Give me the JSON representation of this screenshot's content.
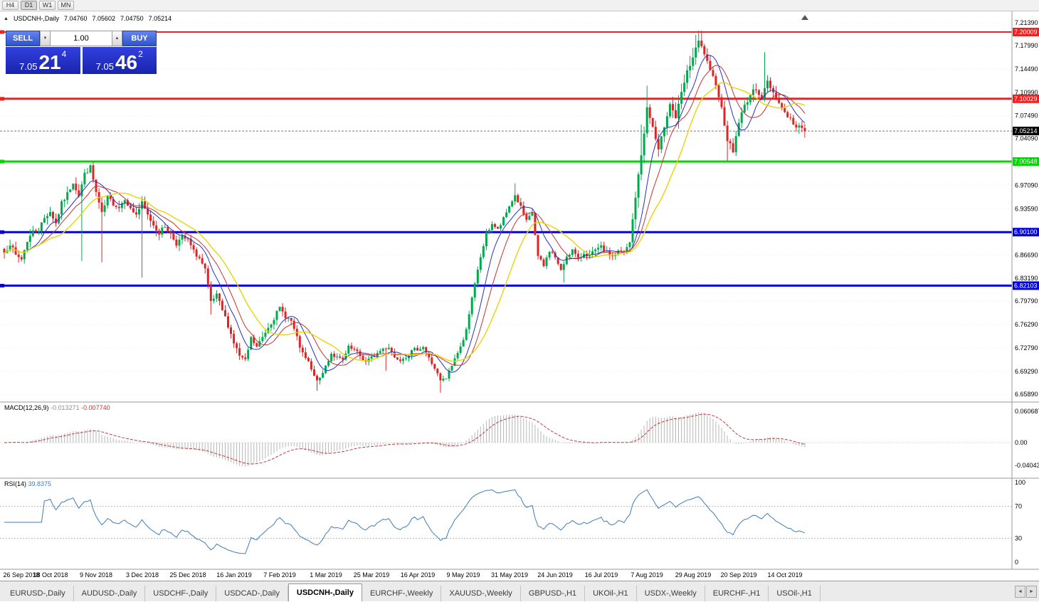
{
  "toolbar": {
    "timeframes": [
      "H4",
      "D1",
      "W1",
      "MN"
    ],
    "active_timeframe": "D1"
  },
  "chart_header": {
    "marker": "▲",
    "symbol": "USDCNH-,Daily",
    "open": "7.04760",
    "high": "7.05602",
    "low": "7.04750",
    "close": "7.05214"
  },
  "one_click": {
    "sell_label": "SELL",
    "buy_label": "BUY",
    "volume": "1.00",
    "down_glyph": "▼",
    "up_glyph": "▲",
    "sell_price": {
      "main": "7.05",
      "big": "21",
      "sup": "4"
    },
    "buy_price": {
      "main": "7.05",
      "big": "46",
      "sup": "2"
    }
  },
  "price_scale_ticks": [
    "7.21390",
    "7.17990",
    "7.14490",
    "7.10990",
    "7.07490",
    "7.04090",
    "6.97090",
    "6.93590",
    "6.86690",
    "6.83190",
    "6.79790",
    "6.76290",
    "6.72790",
    "6.69290",
    "6.65890"
  ],
  "hlines": [
    {
      "price": 7.20009,
      "label": "7.20009",
      "color": "#f02020",
      "width": 2
    },
    {
      "price": 7.10029,
      "label": "7.10029",
      "color": "#f02020",
      "width": 3
    },
    {
      "price": 7.00648,
      "label": "7.00648",
      "color": "#00d800",
      "width": 3
    },
    {
      "price": 6.901,
      "label": "6.90100",
      "color": "#0000e0",
      "width": 3
    },
    {
      "price": 6.82103,
      "label": "6.82103",
      "color": "#0000e0",
      "width": 3
    }
  ],
  "current_price": {
    "value": 7.05214,
    "label": "7.05214",
    "badge_color": "#000000"
  },
  "macd_panel": {
    "name": "MACD(12,26,9)",
    "value_main": "-0.013271",
    "value_signal": "-0.007740",
    "scale": [
      "0.060687",
      "0.00",
      "-0.040432"
    ]
  },
  "rsi_panel": {
    "name": "RSI(14)",
    "value": "39.8375",
    "scale": [
      "100",
      "70",
      "30",
      "0"
    ]
  },
  "date_axis": [
    [
      0,
      "26 Sep 2018"
    ],
    [
      16,
      "18 Oct 2018"
    ],
    [
      32,
      "9 Nov 2018"
    ],
    [
      48,
      "3 Dec 2018"
    ],
    [
      64,
      "25 Dec 2018"
    ],
    [
      80,
      "16 Jan 2019"
    ],
    [
      96,
      "7 Feb 2019"
    ],
    [
      112,
      "1 Mar 2019"
    ],
    [
      128,
      "25 Mar 2019"
    ],
    [
      144,
      "16 Apr 2019"
    ],
    [
      160,
      "9 May 2019"
    ],
    [
      176,
      "31 May 2019"
    ],
    [
      192,
      "24 Jun 2019"
    ],
    [
      208,
      "16 Jul 2019"
    ],
    [
      224,
      "7 Aug 2019"
    ],
    [
      240,
      "29 Aug 2019"
    ],
    [
      256,
      "20 Sep 2019"
    ],
    [
      272,
      "14 Oct 2019"
    ]
  ],
  "tabs": {
    "items": [
      "EURUSD-,Daily",
      "AUDUSD-,Daily",
      "USDCHF-,Daily",
      "USDCAD-,Daily",
      "USDCNH-,Daily",
      "EURCHF-,Weekly",
      "XAUUSD-,Weekly",
      "GBPUSD-,H1",
      "UKOil-,H1",
      "USDX-,Weekly",
      "EURCHF-,H1",
      "USOil-,H1"
    ],
    "active": "USDCNH-,Daily",
    "left_arrow": "◄",
    "right_arrow": "►"
  },
  "chart_data": {
    "type": "candlestick",
    "title": "USDCNH-,Daily",
    "price_axis": {
      "min": 6.6589,
      "max": 7.2139
    },
    "candle_count": 280,
    "last_close": 7.05214,
    "close_anchors": [
      [
        0,
        6.87
      ],
      [
        2,
        6.884
      ],
      [
        4,
        6.866
      ],
      [
        6,
        6.861
      ],
      [
        8,
        6.888
      ],
      [
        10,
        6.902
      ],
      [
        12,
        6.905
      ],
      [
        14,
        6.922
      ],
      [
        16,
        6.932
      ],
      [
        18,
        6.914
      ],
      [
        20,
        6.944
      ],
      [
        22,
        6.958
      ],
      [
        24,
        6.976
      ],
      [
        26,
        6.956
      ],
      [
        28,
        6.988
      ],
      [
        30,
        6.998
      ],
      [
        32,
        6.96
      ],
      [
        34,
        6.928
      ],
      [
        36,
        6.952
      ],
      [
        38,
        6.944
      ],
      [
        40,
        6.938
      ],
      [
        42,
        6.952
      ],
      [
        44,
        6.935
      ],
      [
        46,
        6.928
      ],
      [
        48,
        6.944
      ],
      [
        50,
        6.926
      ],
      [
        52,
        6.912
      ],
      [
        54,
        6.9
      ],
      [
        56,
        6.91
      ],
      [
        58,
        6.898
      ],
      [
        60,
        6.884
      ],
      [
        62,
        6.893
      ],
      [
        64,
        6.889
      ],
      [
        66,
        6.872
      ],
      [
        68,
        6.862
      ],
      [
        70,
        6.844
      ],
      [
        72,
        6.796
      ],
      [
        74,
        6.806
      ],
      [
        76,
        6.784
      ],
      [
        78,
        6.762
      ],
      [
        80,
        6.736
      ],
      [
        82,
        6.716
      ],
      [
        84,
        6.708
      ],
      [
        86,
        6.742
      ],
      [
        88,
        6.729
      ],
      [
        90,
        6.744
      ],
      [
        92,
        6.76
      ],
      [
        94,
        6.773
      ],
      [
        96,
        6.787
      ],
      [
        98,
        6.776
      ],
      [
        100,
        6.768
      ],
      [
        102,
        6.742
      ],
      [
        104,
        6.718
      ],
      [
        106,
        6.706
      ],
      [
        108,
        6.684
      ],
      [
        110,
        6.68
      ],
      [
        112,
        6.701
      ],
      [
        114,
        6.72
      ],
      [
        116,
        6.713
      ],
      [
        118,
        6.709
      ],
      [
        120,
        6.728
      ],
      [
        122,
        6.724
      ],
      [
        124,
        6.716
      ],
      [
        126,
        6.707
      ],
      [
        128,
        6.713
      ],
      [
        130,
        6.72
      ],
      [
        132,
        6.727
      ],
      [
        134,
        6.73
      ],
      [
        136,
        6.714
      ],
      [
        138,
        6.712
      ],
      [
        140,
        6.716
      ],
      [
        142,
        6.722
      ],
      [
        144,
        6.727
      ],
      [
        146,
        6.73
      ],
      [
        148,
        6.712
      ],
      [
        150,
        6.698
      ],
      [
        152,
        6.678
      ],
      [
        154,
        6.682
      ],
      [
        156,
        6.702
      ],
      [
        158,
        6.722
      ],
      [
        160,
        6.738
      ],
      [
        162,
        6.78
      ],
      [
        164,
        6.822
      ],
      [
        166,
        6.864
      ],
      [
        168,
        6.898
      ],
      [
        170,
        6.914
      ],
      [
        172,
        6.904
      ],
      [
        174,
        6.92
      ],
      [
        176,
        6.94
      ],
      [
        178,
        6.956
      ],
      [
        180,
        6.938
      ],
      [
        182,
        6.916
      ],
      [
        184,
        6.93
      ],
      [
        186,
        6.864
      ],
      [
        188,
        6.85
      ],
      [
        190,
        6.874
      ],
      [
        192,
        6.864
      ],
      [
        194,
        6.842
      ],
      [
        196,
        6.866
      ],
      [
        198,
        6.874
      ],
      [
        200,
        6.86
      ],
      [
        202,
        6.87
      ],
      [
        204,
        6.866
      ],
      [
        206,
        6.873
      ],
      [
        208,
        6.878
      ],
      [
        210,
        6.87
      ],
      [
        212,
        6.865
      ],
      [
        214,
        6.872
      ],
      [
        216,
        6.869
      ],
      [
        218,
        6.885
      ],
      [
        220,
        6.954
      ],
      [
        222,
        7.016
      ],
      [
        224,
        7.086
      ],
      [
        226,
        7.058
      ],
      [
        228,
        7.022
      ],
      [
        230,
        7.06
      ],
      [
        232,
        7.094
      ],
      [
        234,
        7.072
      ],
      [
        236,
        7.108
      ],
      [
        238,
        7.14
      ],
      [
        240,
        7.162
      ],
      [
        242,
        7.186
      ],
      [
        244,
        7.168
      ],
      [
        246,
        7.14
      ],
      [
        248,
        7.124
      ],
      [
        250,
        7.086
      ],
      [
        252,
        7.04
      ],
      [
        254,
        7.022
      ],
      [
        256,
        7.066
      ],
      [
        258,
        7.09
      ],
      [
        260,
        7.106
      ],
      [
        262,
        7.116
      ],
      [
        264,
        7.102
      ],
      [
        266,
        7.126
      ],
      [
        268,
        7.11
      ],
      [
        270,
        7.094
      ],
      [
        272,
        7.08
      ],
      [
        274,
        7.07
      ],
      [
        276,
        7.056
      ],
      [
        278,
        7.06
      ],
      [
        279,
        7.052
      ]
    ],
    "spikes": [
      {
        "i": 27,
        "low": 6.858
      },
      {
        "i": 34,
        "low": 6.856
      },
      {
        "i": 48,
        "low": 6.833
      },
      {
        "i": 72,
        "low": 6.778
      },
      {
        "i": 109,
        "low": 6.664
      },
      {
        "i": 133,
        "low": 6.694
      },
      {
        "i": 152,
        "low": 6.661
      },
      {
        "i": 178,
        "high": 6.974
      },
      {
        "i": 195,
        "low": 6.826
      },
      {
        "i": 222,
        "high": 7.062
      },
      {
        "i": 224,
        "high": 7.12
      },
      {
        "i": 241,
        "high": 7.196
      },
      {
        "i": 252,
        "low": 7.008
      },
      {
        "i": 265,
        "high": 7.17
      }
    ],
    "wick_ranges": [
      {
        "from": 0,
        "to": 64,
        "wick": 0.01
      },
      {
        "from": 65,
        "to": 112,
        "wick": 0.008
      },
      {
        "from": 113,
        "to": 159,
        "wick": 0.006
      },
      {
        "from": 160,
        "to": 217,
        "wick": 0.007
      },
      {
        "from": 218,
        "to": 243,
        "wick": 0.016
      },
      {
        "from": 244,
        "to": 279,
        "wick": 0.01
      }
    ],
    "ma_periods": [
      8,
      13,
      21
    ],
    "macd": {
      "fast": 12,
      "slow": 26,
      "signal": 9,
      "panel_max": 0.060687,
      "panel_min": -0.040432
    },
    "rsi": {
      "period": 14,
      "last": 39.8375,
      "levels": [
        70,
        30
      ]
    },
    "colors": {
      "up": "#00a84e",
      "down": "#e02424",
      "ma_fast": "#2431c8",
      "ma_mid": "#c83232",
      "ma_slow": "#e8d40a",
      "macd_hist": "#b6b6b6",
      "macd_signal": "#c03a3a",
      "rsi_line": "#3f7cb8"
    }
  }
}
